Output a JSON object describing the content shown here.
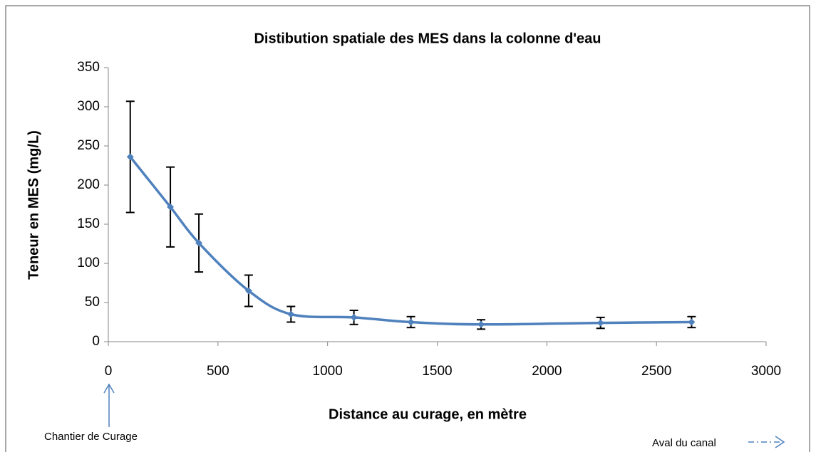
{
  "chart_data": {
    "type": "line",
    "title": "Distibution spatiale des MES dans la colonne d'eau",
    "x_label": "Distance au curage, en mètre",
    "y_label": "Teneur en MES (mg/L)",
    "annotations": [
      "Chantier  de Curage",
      "Aval du canal"
    ],
    "series": [
      {
        "color": "#4f81bd",
        "x": [
          100,
          283,
          413,
          640,
          833,
          1120,
          1380,
          1700,
          2245,
          2660
        ],
        "values": [
          236,
          172,
          126,
          65,
          35,
          31,
          25,
          22,
          24,
          25
        ],
        "errors": [
          71,
          51,
          37,
          20,
          10,
          9,
          7,
          6,
          7,
          7
        ]
      }
    ],
    "xlim": [
      0,
      3000
    ],
    "xticks": [
      0,
      500,
      1000,
      1500,
      2000,
      2500,
      3000
    ],
    "ylim": [
      0,
      350
    ],
    "yticks": [
      0,
      50,
      100,
      150,
      200,
      250,
      300,
      350
    ],
    "smooth": true,
    "error_bars": true
  }
}
